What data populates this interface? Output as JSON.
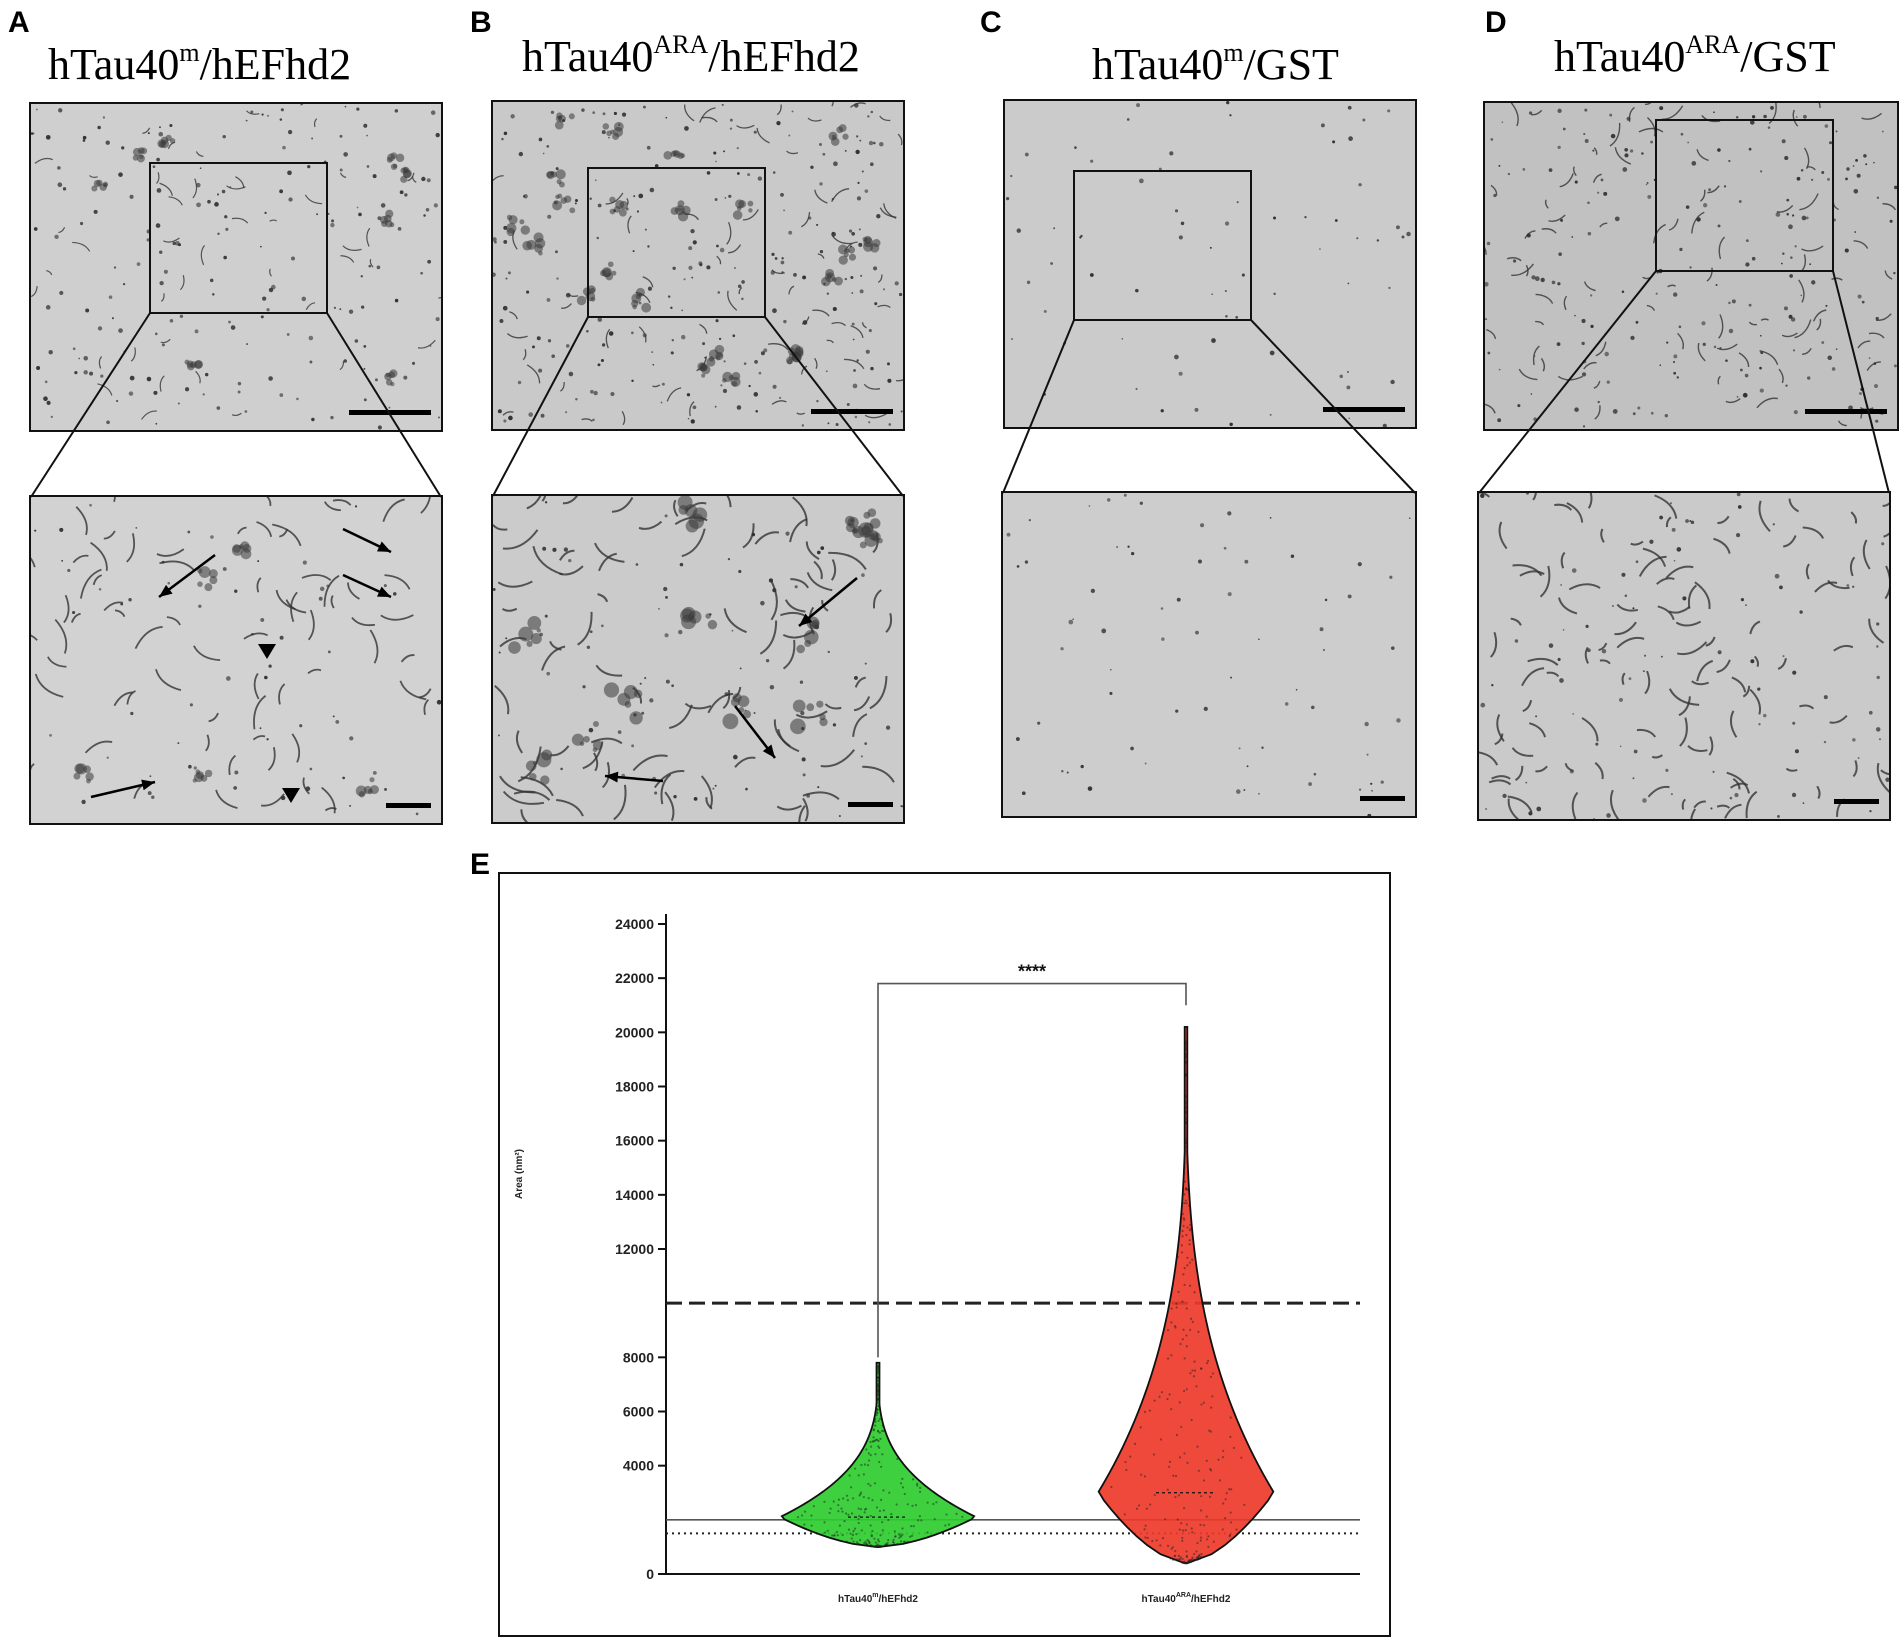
{
  "panels": [
    {
      "letter": "A",
      "title_main": "hTau40",
      "title_sup": "m",
      "title_rest": "/hEFhd2"
    },
    {
      "letter": "B",
      "title_main": "hTau40",
      "title_sup": "ARA",
      "title_rest": "/hEFhd2"
    },
    {
      "letter": "C",
      "title_main": "hTau40",
      "title_sup": "m",
      "title_rest": "/GST"
    },
    {
      "letter": "D",
      "title_main": "hTau40",
      "title_sup": "ARA",
      "title_rest": "/GST"
    }
  ],
  "panel_e_letter": "E",
  "chart_data": {
    "type": "violin",
    "title": "",
    "ylabel": "Area (nm²)",
    "ylim": [
      0,
      24000
    ],
    "yticks": [
      0,
      4000,
      6000,
      8000,
      12000,
      14000,
      16000,
      18000,
      20000,
      22000,
      24000
    ],
    "categories": [
      "hTau40m/hEFhd2",
      "hTau40ARA/hEFhd2"
    ],
    "category_labels": [
      {
        "main": "hTau40",
        "sup": "m",
        "rest": "/hEFhd2"
      },
      {
        "main": "hTau40",
        "sup": "ARA",
        "rest": "/hEFhd2"
      }
    ],
    "series": [
      {
        "color": "#2ecc2e",
        "min": 1000,
        "max": 7800,
        "median": 2100
      },
      {
        "color": "#ee3a2a",
        "min": 400,
        "max": 20200,
        "median": 3000
      }
    ],
    "reference_lines": [
      {
        "value": 10000,
        "style": "dashed"
      },
      {
        "value": 2000,
        "style": "solid"
      },
      {
        "value": 1500,
        "style": "dotted"
      }
    ],
    "significance": "****",
    "grid": false
  }
}
